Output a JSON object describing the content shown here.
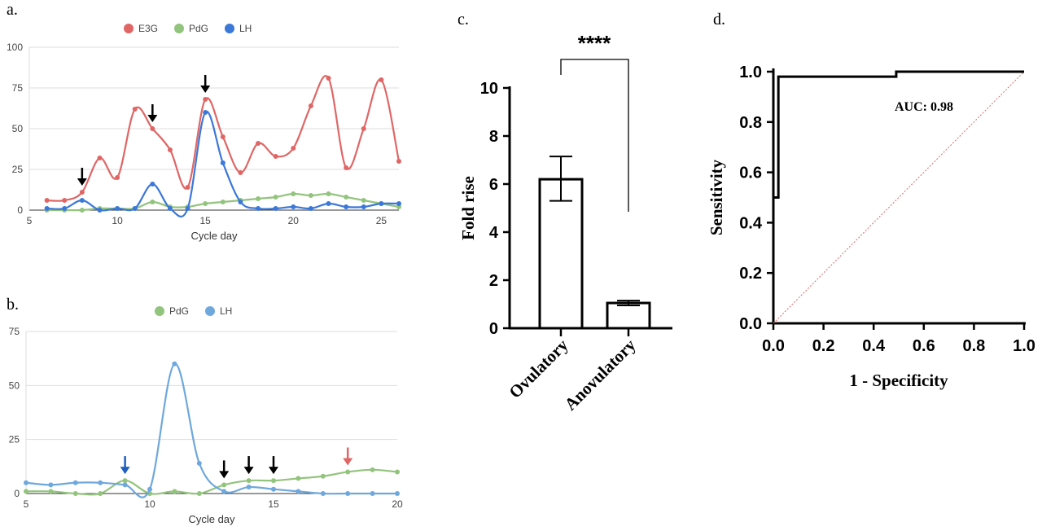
{
  "panel_labels": {
    "a": "a.",
    "b": "b.",
    "c": "c.",
    "d": "d."
  },
  "colors": {
    "e3g": "#e06666",
    "pdg": "#93c47d",
    "lh_a": "#3c78d8",
    "lh_b": "#6fa8dc",
    "arrow_blue": "#1f5fbf",
    "arrow_red": "#e06666",
    "diag": "#e06666"
  },
  "chart_data": [
    {
      "type": "line",
      "panel": "a.",
      "xlabel": "Cycle day",
      "xlim": [
        5,
        26
      ],
      "ylim": [
        0,
        100
      ],
      "xticks": [
        "5",
        "10",
        "15",
        "20",
        "25"
      ],
      "yticks": [
        "0",
        "25",
        "50",
        "75",
        "100"
      ],
      "legend": [
        "E3G",
        "PdG",
        "LH"
      ],
      "legend_position": "top",
      "series": [
        {
          "name": "E3G",
          "x": [
            6,
            7,
            8,
            9,
            10,
            11,
            12,
            13,
            14,
            15,
            16,
            17,
            18,
            19,
            20,
            21,
            22,
            23,
            24,
            25,
            26
          ],
          "y": [
            6,
            6,
            11,
            32,
            20,
            62,
            50,
            37,
            14,
            68,
            45,
            23,
            41,
            33,
            38,
            64,
            81,
            26,
            50,
            80,
            30
          ]
        },
        {
          "name": "PdG",
          "x": [
            6,
            7,
            8,
            9,
            10,
            11,
            12,
            13,
            14,
            15,
            16,
            17,
            18,
            19,
            20,
            21,
            22,
            23,
            24,
            25,
            26
          ],
          "y": [
            0,
            0,
            0,
            1,
            1,
            1,
            5,
            2,
            2,
            4,
            5,
            6,
            7,
            8,
            10,
            9,
            10,
            8,
            6,
            4,
            2
          ]
        },
        {
          "name": "LH",
          "x": [
            6,
            7,
            8,
            9,
            10,
            11,
            12,
            13,
            14,
            15,
            16,
            17,
            18,
            19,
            20,
            21,
            22,
            23,
            24,
            25,
            26
          ],
          "y": [
            1,
            1,
            6,
            0,
            1,
            1,
            16,
            1,
            1,
            60,
            29,
            5,
            1,
            1,
            2,
            1,
            4,
            2,
            2,
            4,
            4
          ]
        }
      ],
      "arrows": [
        8,
        12,
        15
      ]
    },
    {
      "type": "line",
      "panel": "b.",
      "xlabel": "Cycle day",
      "xlim": [
        5,
        20
      ],
      "ylim": [
        0,
        75
      ],
      "xticks": [
        "5",
        "10",
        "15",
        "20"
      ],
      "yticks": [
        "0",
        "25",
        "50",
        "75"
      ],
      "legend": [
        "PdG",
        "LH"
      ],
      "legend_position": "top",
      "series": [
        {
          "name": "PdG",
          "x": [
            5,
            6,
            7,
            8,
            9,
            10,
            11,
            12,
            13,
            14,
            15,
            16,
            17,
            18,
            19,
            20
          ],
          "y": [
            1,
            1,
            0,
            0,
            6,
            0,
            1,
            0,
            4,
            6,
            6,
            7,
            8,
            10,
            11,
            10
          ]
        },
        {
          "name": "LH",
          "x": [
            5,
            6,
            7,
            8,
            9,
            10,
            11,
            12,
            13,
            14,
            15,
            16,
            17,
            18,
            19,
            20
          ],
          "y": [
            5,
            4,
            5,
            5,
            4,
            2,
            60,
            14,
            1,
            3,
            2,
            1,
            0,
            0,
            0,
            0
          ]
        }
      ],
      "arrows": [
        {
          "x": 9,
          "color": "blue"
        },
        {
          "x": 13,
          "color": "black"
        },
        {
          "x": 14,
          "color": "black"
        },
        {
          "x": 15,
          "color": "black"
        },
        {
          "x": 18,
          "color": "red"
        }
      ]
    },
    {
      "type": "bar",
      "panel": "c.",
      "categories": [
        "Ovulatory",
        "Anovulatory"
      ],
      "values": [
        6.2,
        1.05
      ],
      "errors": [
        [
          5.3,
          7.15
        ],
        [
          0.95,
          1.15
        ]
      ],
      "ylabel": "Fold rise",
      "ylim": [
        0,
        10
      ],
      "yticks": [
        "0",
        "2",
        "4",
        "6",
        "8",
        "10"
      ],
      "significance": "****"
    },
    {
      "type": "line",
      "panel": "d.",
      "xlabel": "1 - Specificity",
      "ylabel": "Sensitivity",
      "xlim": [
        0,
        1
      ],
      "ylim": [
        0,
        1
      ],
      "xticks": [
        "0.0",
        "0.2",
        "0.4",
        "0.6",
        "0.8",
        "1.0"
      ],
      "yticks": [
        "0.0",
        "0.2",
        "0.4",
        "0.6",
        "0.8",
        "1.0"
      ],
      "annotation": "AUC: 0.98",
      "series": [
        {
          "x": [
            0,
            0.02,
            0.02,
            0.02,
            0.49,
            0.49,
            1.0
          ],
          "y": [
            0.5,
            0.5,
            0.98,
            0.98,
            0.98,
            1.0,
            1.0
          ]
        },
        {
          "x": [
            0,
            1
          ],
          "y": [
            0,
            1
          ]
        }
      ]
    }
  ]
}
